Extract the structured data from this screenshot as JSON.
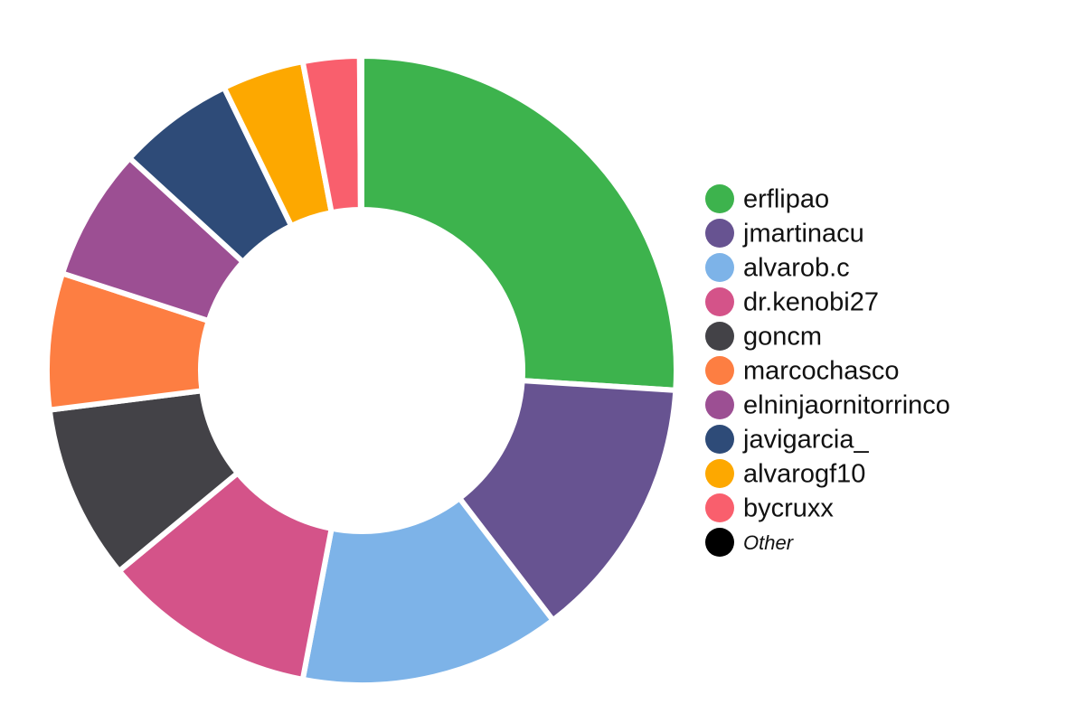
{
  "chart_data": {
    "type": "donut",
    "categories": [
      "erflipao",
      "jmartinacu",
      "alvarob.c",
      "dr.kenobi27",
      "goncm",
      "marcochasco",
      "elninjaornitorrinco",
      "javigarcia_",
      "alvarogf10",
      "bycruxx",
      "Other"
    ],
    "values": [
      26,
      13.6,
      13.4,
      11,
      9,
      7,
      6.8,
      6,
      4.2,
      2.9,
      0.1
    ],
    "colors": [
      "#3db34d",
      "#675391",
      "#7db3e8",
      "#d45389",
      "#434247",
      "#fd7e42",
      "#9c4f93",
      "#2e4b78",
      "#fda800",
      "#f95f6d",
      "#000000"
    ]
  }
}
